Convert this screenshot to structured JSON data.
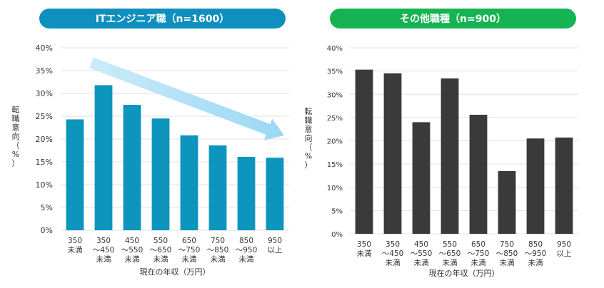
{
  "colors": {
    "it_title_bg": "#0f8fbe",
    "it_bar": "#0d95bd",
    "other_title_bg": "#16b352",
    "other_bar": "#3a3a3a",
    "arrow": "#a9ddf5",
    "grid": "#e2e2e2",
    "text": "#333333"
  },
  "chart_data": [
    {
      "type": "bar",
      "title": "ITエンジニア職（n=1600）",
      "xlabel": "現在の年収（万円）",
      "ylabel": "転職意向（%）",
      "ylim": [
        0,
        40
      ],
      "yticks": [
        "0%",
        "5%",
        "10%",
        "15%",
        "20%",
        "25%",
        "30%",
        "35%",
        "40%"
      ],
      "grid": true,
      "annotation": "downward-trend-arrow",
      "categories": [
        [
          "350",
          "未満"
        ],
        [
          "350",
          "～450",
          "未満"
        ],
        [
          "450",
          "～550",
          "未満"
        ],
        [
          "550",
          "～650",
          "未満"
        ],
        [
          "650",
          "～750",
          "未満"
        ],
        [
          "750",
          "～850",
          "未満"
        ],
        [
          "850",
          "～950",
          "未満"
        ],
        [
          "950",
          "以上"
        ]
      ],
      "values": [
        24.3,
        31.8,
        27.5,
        24.5,
        20.8,
        18.6,
        16.1,
        15.9
      ]
    },
    {
      "type": "bar",
      "title": "その他職種（n=900）",
      "xlabel": "現在の年収（万円）",
      "ylabel": "転職意向（%）",
      "ylim": [
        0,
        40
      ],
      "yticks": [
        "0%",
        "5%",
        "10%",
        "15%",
        "20%",
        "25%",
        "30%",
        "35%",
        "40%"
      ],
      "grid": true,
      "categories": [
        [
          "350",
          "未満"
        ],
        [
          "350",
          "～450",
          "未満"
        ],
        [
          "450",
          "～550",
          "未満"
        ],
        [
          "550",
          "～650",
          "未満"
        ],
        [
          "650",
          "～750",
          "未満"
        ],
        [
          "750",
          "～850",
          "未満"
        ],
        [
          "850",
          "～950",
          "未満"
        ],
        [
          "950",
          "以上"
        ]
      ],
      "values": [
        35.3,
        34.5,
        24.0,
        33.4,
        25.6,
        13.5,
        20.5,
        20.7
      ]
    }
  ]
}
